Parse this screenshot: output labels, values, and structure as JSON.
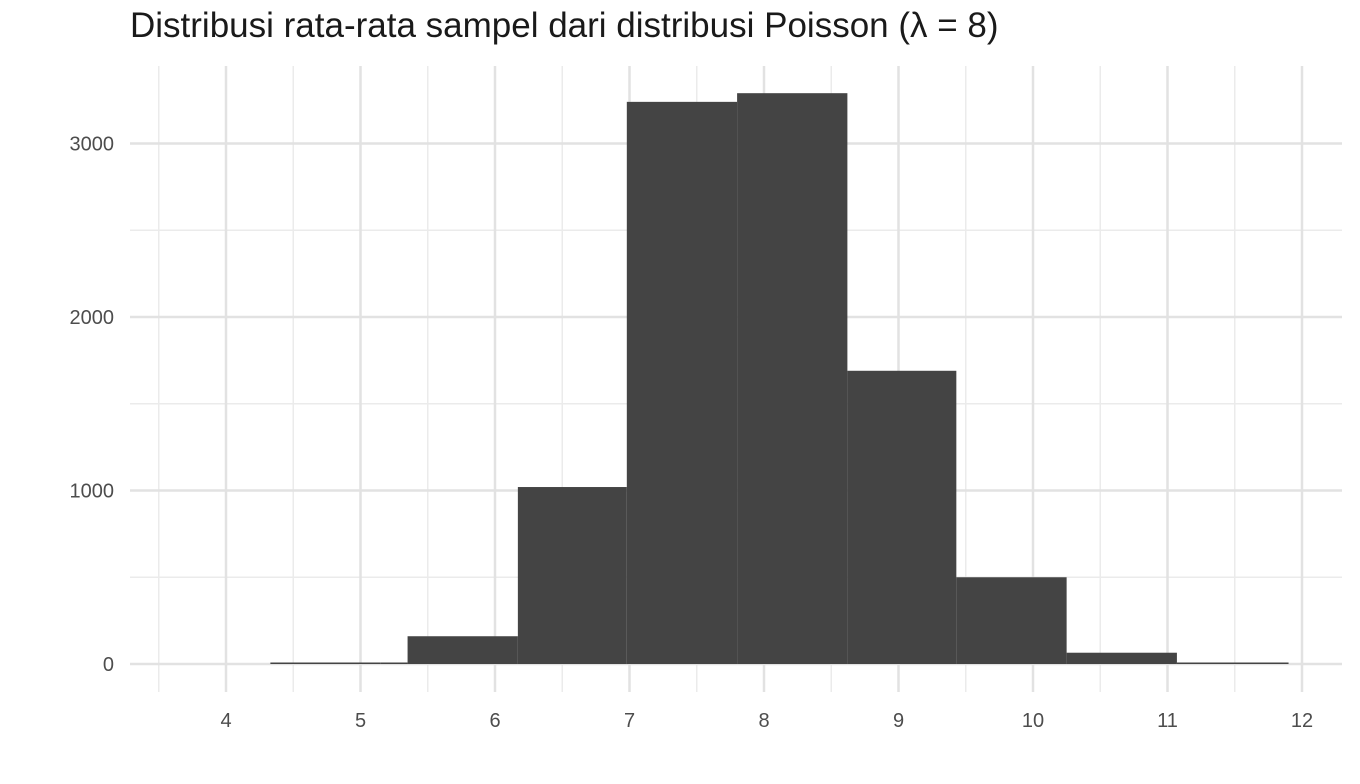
{
  "chart_data": {
    "type": "bar",
    "title": "Distribusi rata-rata sampel dari distribusi Poisson (λ = 8)",
    "xlabel": "",
    "ylabel": "",
    "xlim": [
      3.5,
      12.3
    ],
    "ylim": [
      0,
      3300
    ],
    "x_ticks": [
      4,
      5,
      6,
      7,
      8,
      9,
      10,
      11,
      12
    ],
    "x_tick_labels": [
      "4",
      "5",
      "6",
      "7",
      "8",
      "9",
      "10",
      "11",
      "12"
    ],
    "y_ticks": [
      0,
      1000,
      2000,
      3000
    ],
    "y_tick_labels": [
      "0",
      "1000",
      "2000",
      "3000"
    ],
    "grid": true,
    "bar_color": "#444444",
    "bins": [
      {
        "x0": 3.5,
        "x1": 4.33,
        "count": 0
      },
      {
        "x0": 4.33,
        "x1": 5.15,
        "count": 2
      },
      {
        "x0": 5.15,
        "x1": 5.35,
        "count": 3
      },
      {
        "x0": 5.35,
        "x1": 6.17,
        "count": 160
      },
      {
        "x0": 6.17,
        "x1": 6.98,
        "count": 1020
      },
      {
        "x0": 6.98,
        "x1": 7.8,
        "count": 3240
      },
      {
        "x0": 7.8,
        "x1": 8.62,
        "count": 3290
      },
      {
        "x0": 8.62,
        "x1": 9.43,
        "count": 1690
      },
      {
        "x0": 9.43,
        "x1": 10.25,
        "count": 500
      },
      {
        "x0": 10.25,
        "x1": 11.07,
        "count": 65
      },
      {
        "x0": 11.07,
        "x1": 11.9,
        "count": 8
      }
    ]
  }
}
